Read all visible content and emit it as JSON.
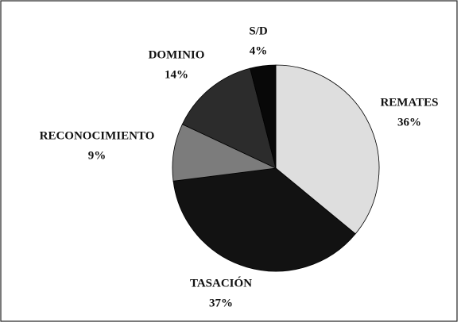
{
  "chart_data": {
    "type": "pie",
    "categories": [
      "REMATES",
      "TASACIÓN",
      "RECONOCIMIENTO",
      "DOMINIO",
      "S/D"
    ],
    "values": [
      36,
      37,
      9,
      14,
      4
    ],
    "value_labels": [
      "36%",
      "37%",
      "9%",
      "14%",
      "4%"
    ],
    "colors": [
      "#dedede",
      "#121212",
      "#7c7c7c",
      "#2c2c2c",
      "#080808"
    ]
  }
}
